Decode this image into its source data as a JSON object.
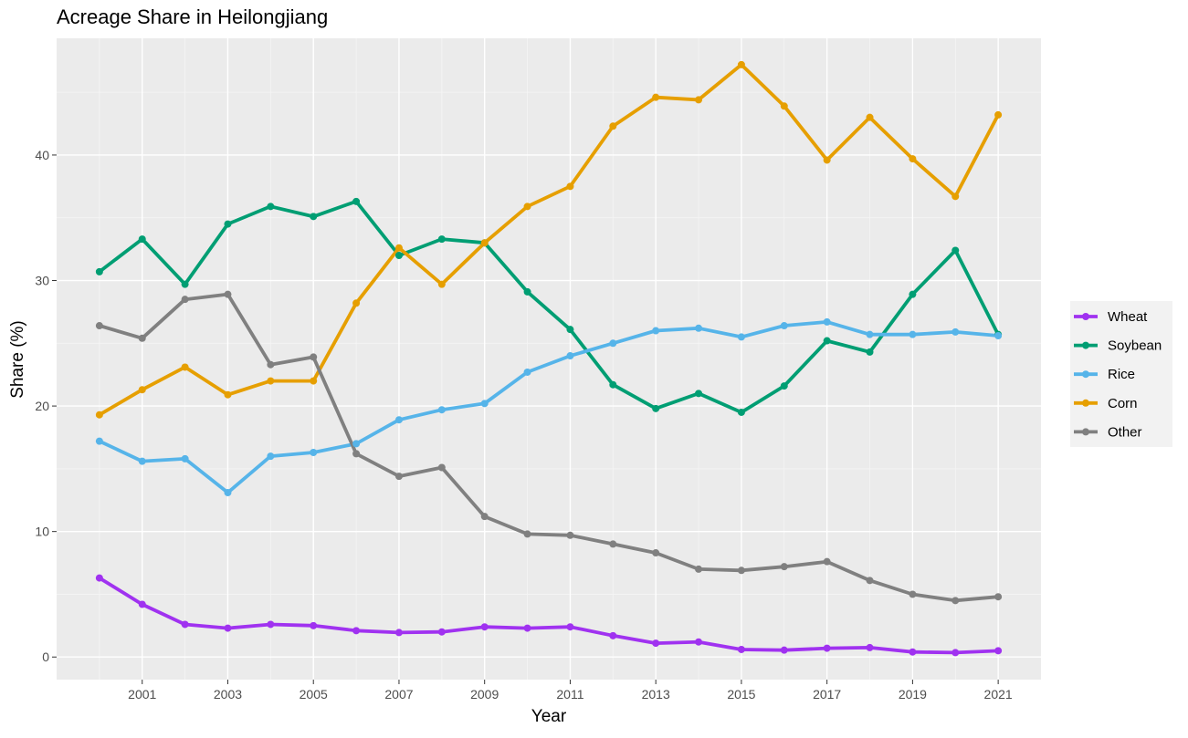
{
  "chart_data": {
    "type": "line",
    "title": "Acreage Share in Heilongjiang",
    "xlabel": "Year",
    "ylabel": "Share (%)",
    "x": [
      2000,
      2001,
      2002,
      2003,
      2004,
      2005,
      2006,
      2007,
      2008,
      2009,
      2010,
      2011,
      2012,
      2013,
      2014,
      2015,
      2016,
      2017,
      2018,
      2019,
      2020,
      2021
    ],
    "x_ticks": [
      "2001",
      "2003",
      "2005",
      "2007",
      "2009",
      "2011",
      "2013",
      "2015",
      "2017",
      "2019",
      "2021"
    ],
    "y_ticks": [
      "0",
      "10",
      "20",
      "30",
      "40"
    ],
    "xlim": [
      1999,
      2022
    ],
    "ylim": [
      -1.8,
      49.3
    ],
    "grid": true,
    "legend_position": "right",
    "series": [
      {
        "name": "Wheat",
        "color": "#a032f0",
        "values": [
          6.3,
          4.2,
          2.6,
          2.3,
          2.6,
          2.5,
          2.1,
          1.95,
          2.0,
          2.4,
          2.3,
          2.4,
          1.7,
          1.1,
          1.2,
          0.6,
          0.55,
          0.7,
          0.75,
          0.4,
          0.35,
          0.5
        ]
      },
      {
        "name": "Soybean",
        "color": "#009e73",
        "values": [
          30.7,
          33.3,
          29.7,
          34.5,
          35.9,
          35.1,
          36.3,
          32.0,
          33.3,
          33.0,
          29.1,
          26.1,
          21.7,
          19.8,
          21.0,
          19.5,
          21.6,
          25.2,
          24.3,
          28.9,
          32.4,
          25.7
        ]
      },
      {
        "name": "Rice",
        "color": "#56b4e9",
        "values": [
          17.2,
          15.6,
          15.8,
          13.1,
          16.0,
          16.3,
          17.0,
          18.9,
          19.7,
          20.2,
          22.7,
          24.0,
          25.0,
          26.0,
          26.2,
          25.5,
          26.4,
          26.7,
          25.7,
          25.7,
          25.9,
          25.6
        ]
      },
      {
        "name": "Corn",
        "color": "#e69f00",
        "values": [
          19.3,
          21.3,
          23.1,
          20.9,
          22.0,
          22.0,
          28.2,
          32.6,
          29.7,
          33.0,
          35.9,
          37.5,
          42.3,
          44.6,
          44.4,
          47.2,
          43.9,
          39.6,
          43.0,
          39.7,
          36.7,
          43.2
        ]
      },
      {
        "name": "Other",
        "color": "#808080",
        "values": [
          26.4,
          25.4,
          28.5,
          28.9,
          23.3,
          23.9,
          16.2,
          14.4,
          15.1,
          11.2,
          9.8,
          9.7,
          9.0,
          8.3,
          7.0,
          6.9,
          7.2,
          7.6,
          6.1,
          5.0,
          4.5,
          4.8
        ]
      }
    ]
  }
}
